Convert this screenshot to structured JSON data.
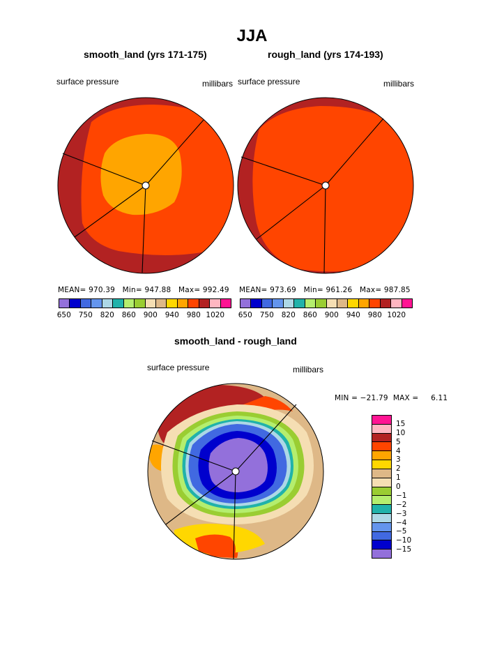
{
  "figure": {
    "title": "JJA",
    "colors": {
      "c650": "#9370db",
      "c700": "#0000cd",
      "c750": "#4169e1",
      "c800": "#6495ed",
      "c820": "#add8e6",
      "c840": "#20b2aa",
      "c860": "#b4ee6e",
      "c880": "#9acd32",
      "c900": "#f5deb3",
      "c920": "#deb887",
      "c940": "#ffd700",
      "c960": "#ffa500",
      "c980": "#ff4500",
      "c1000": "#b22222",
      "c1010": "#ffb6c1",
      "c1020": "#ff1493"
    }
  },
  "chart_data": [
    {
      "type": "polar_contour_fill",
      "title": "smooth_land (yrs 171-175)",
      "left_label": "surface pressure",
      "right_label": "millibars",
      "stats": {
        "mean_label": "MEAN=",
        "mean": "970.39",
        "min_label": "Min=",
        "min": "947.88",
        "max_label": "Max=",
        "max": "992.49"
      },
      "fill_levels": [
        "980-1000",
        "960-980",
        "940-960"
      ],
      "colorbar": {
        "colors": [
          "#9370db",
          "#0000cd",
          "#4169e1",
          "#6495ed",
          "#add8e6",
          "#20b2aa",
          "#b4ee6e",
          "#9acd32",
          "#f5deb3",
          "#deb887",
          "#ffd700",
          "#ffa500",
          "#ff4500",
          "#b22222",
          "#ffb6c1",
          "#ff1493"
        ],
        "tick_labels": [
          "650",
          "750",
          "820",
          "860",
          "900",
          "940",
          "980",
          "1020"
        ]
      }
    },
    {
      "type": "polar_contour_fill",
      "title": "rough_land (yrs 174-193)",
      "left_label": "surface pressure",
      "right_label": "millibars",
      "stats": {
        "mean_label": "MEAN=",
        "mean": "973.69",
        "min_label": "Min=",
        "min": "961.26",
        "max_label": "Max=",
        "max": "987.85"
      },
      "fill_levels": [
        "980-1000",
        "960-980"
      ],
      "colorbar": {
        "colors": [
          "#9370db",
          "#0000cd",
          "#4169e1",
          "#6495ed",
          "#add8e6",
          "#20b2aa",
          "#b4ee6e",
          "#9acd32",
          "#f5deb3",
          "#deb887",
          "#ffd700",
          "#ffa500",
          "#ff4500",
          "#b22222",
          "#ffb6c1",
          "#ff1493"
        ],
        "tick_labels": [
          "650",
          "750",
          "820",
          "860",
          "900",
          "940",
          "980",
          "1020"
        ]
      }
    },
    {
      "type": "polar_contour_fill",
      "title": "smooth_land - rough_land",
      "left_label": "surface pressure",
      "right_label": "millibars",
      "stats_text": "MIN = −21.79  MAX =     6.11",
      "colorbar": {
        "colors": [
          "#ff1493",
          "#ffb6c1",
          "#b22222",
          "#ff4500",
          "#ffa500",
          "#ffd700",
          "#deb887",
          "#f5deb3",
          "#9acd32",
          "#b4ee6e",
          "#20b2aa",
          "#add8e6",
          "#6495ed",
          "#4169e1",
          "#0000cd",
          "#9370db"
        ],
        "tick_labels": [
          "15",
          "10",
          "5",
          "4",
          "3",
          "2",
          "1",
          "0",
          "−1",
          "−2",
          "−3",
          "−4",
          "−5",
          "−10",
          "−15"
        ]
      }
    }
  ]
}
